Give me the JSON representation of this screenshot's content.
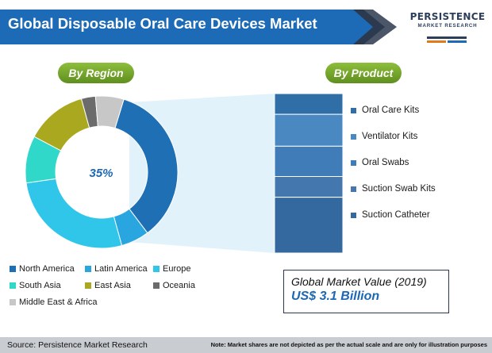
{
  "title": "Global Disposable Oral Care Devices Market",
  "brand": {
    "name": "PERSISTENCE",
    "subtitle": "MARKET RESEARCH"
  },
  "labels": {
    "by_region": "By Region",
    "by_product": "By Product"
  },
  "highlight_value": "35%",
  "market_value": {
    "label": "Global Market Value (2019)",
    "amount": "US$ 3.1 Billion"
  },
  "footer": {
    "source": "Source: Persistence Market Research",
    "note": "Note: Market shares are not depicted as per the actual scale and are only for illustration purposes"
  },
  "colors": {
    "accent_blue": "#1c68b5",
    "green_label": "#6f9f28",
    "north_america": "#1f6fb5",
    "latin_america": "#29a6e0",
    "europe": "#30c6ea",
    "south_asia": "#2fd8c8",
    "east_asia": "#a9a81e",
    "oceania": "#6b6b6b",
    "middle_east_africa": "#c7c7c7"
  },
  "chart_data": [
    {
      "type": "pie",
      "subtitle": "By Region",
      "categories": [
        "North America",
        "Latin America",
        "Europe",
        "South Asia",
        "East Asia",
        "Oceania",
        "Middle East & Africa"
      ],
      "values": [
        35,
        6,
        27,
        10,
        13,
        3,
        6
      ],
      "highlight": "35%",
      "legend_position": "bottom"
    },
    {
      "type": "bar",
      "subtitle": "By Product",
      "categories": [
        "Oral Care Kits",
        "Ventilator Kits",
        "Oral Swabs",
        "Suction Swab Kits",
        "Suction Catheter"
      ],
      "values": [
        13,
        20,
        19,
        13,
        35
      ],
      "stacked": true,
      "legend_position": "right"
    }
  ]
}
